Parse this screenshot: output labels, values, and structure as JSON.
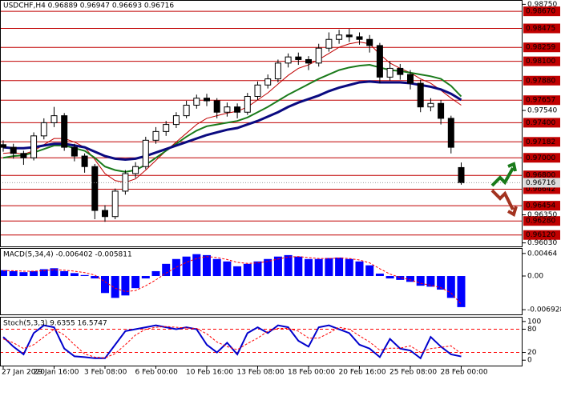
{
  "chart_data": [
    {
      "type": "candlestick",
      "title": "USDCHF,H4 0.96889 0.96947 0.96693 0.96716",
      "open": [
        0.9715,
        0.9712,
        0.9705,
        0.97,
        0.9725,
        0.974,
        0.9748,
        0.9712,
        0.9702,
        0.969,
        0.964,
        0.9633,
        0.9662,
        0.9682,
        0.969,
        0.972,
        0.973,
        0.9738,
        0.9748,
        0.976,
        0.9768,
        0.9765,
        0.9752,
        0.9758,
        0.9752,
        0.977,
        0.9783,
        0.979,
        0.9808,
        0.9815,
        0.9812,
        0.9808,
        0.9825,
        0.9835,
        0.984,
        0.9838,
        0.9835,
        0.9828,
        0.9792,
        0.9802,
        0.9795,
        0.9785,
        0.9758,
        0.9762,
        0.9745,
        0.96889
      ],
      "high": [
        0.972,
        0.9716,
        0.9708,
        0.9729,
        0.9745,
        0.9758,
        0.9751,
        0.9716,
        0.9705,
        0.9693,
        0.9646,
        0.9665,
        0.9686,
        0.9695,
        0.9724,
        0.9735,
        0.9742,
        0.9752,
        0.9765,
        0.9772,
        0.9773,
        0.9768,
        0.9763,
        0.9762,
        0.9774,
        0.9787,
        0.9795,
        0.9812,
        0.9819,
        0.982,
        0.9816,
        0.983,
        0.9843,
        0.9846,
        0.9847,
        0.9843,
        0.984,
        0.9831,
        0.981,
        0.9807,
        0.98,
        0.9789,
        0.9768,
        0.9766,
        0.9748,
        0.96947
      ],
      "low": [
        0.9707,
        0.9699,
        0.9692,
        0.9697,
        0.9721,
        0.9735,
        0.9708,
        0.9696,
        0.9683,
        0.963,
        0.9627,
        0.963,
        0.9658,
        0.9677,
        0.9687,
        0.9716,
        0.9725,
        0.9734,
        0.9745,
        0.9756,
        0.9759,
        0.9745,
        0.9747,
        0.9745,
        0.9749,
        0.9766,
        0.9779,
        0.9786,
        0.9803,
        0.9806,
        0.98,
        0.9804,
        0.9821,
        0.983,
        0.9832,
        0.9829,
        0.982,
        0.9785,
        0.9788,
        0.9789,
        0.9778,
        0.9752,
        0.9753,
        0.9738,
        0.9705,
        0.96693
      ],
      "close": [
        0.9712,
        0.9705,
        0.97,
        0.9725,
        0.974,
        0.9748,
        0.9712,
        0.9702,
        0.969,
        0.964,
        0.9633,
        0.9662,
        0.9682,
        0.969,
        0.972,
        0.973,
        0.9738,
        0.9748,
        0.976,
        0.9768,
        0.9765,
        0.9752,
        0.9758,
        0.9752,
        0.977,
        0.9783,
        0.979,
        0.9808,
        0.9815,
        0.9812,
        0.9808,
        0.9825,
        0.9835,
        0.984,
        0.9838,
        0.9835,
        0.9828,
        0.9792,
        0.9802,
        0.9795,
        0.9785,
        0.9758,
        0.9762,
        0.9745,
        0.9712,
        0.96716
      ],
      "bull_color": "#ffffff",
      "bear_color": "#000000",
      "series": [
        {
          "color": "#c00000",
          "width": 1,
          "values": [
            0.9705,
            0.9706,
            0.9704,
            0.9708,
            0.9715,
            0.9722,
            0.9722,
            0.9718,
            0.9712,
            0.9698,
            0.9682,
            0.9674,
            0.9672,
            0.9676,
            0.9686,
            0.9697,
            0.9708,
            0.9718,
            0.9728,
            0.9738,
            0.9745,
            0.9748,
            0.9751,
            0.9753,
            0.9758,
            0.9766,
            0.9774,
            0.9784,
            0.9794,
            0.9802,
            0.9806,
            0.9812,
            0.9819,
            0.9826,
            0.983,
            0.9832,
            0.983,
            0.9818,
            0.9808,
            0.9802,
            0.9797,
            0.979,
            0.9785,
            0.9777,
            0.9768,
            0.976
          ]
        },
        {
          "color": "#1a7a1a",
          "width": 2,
          "values": [
            0.97,
            0.9702,
            0.9703,
            0.9706,
            0.971,
            0.9714,
            0.9714,
            0.9711,
            0.9708,
            0.97,
            0.969,
            0.9686,
            0.9684,
            0.9686,
            0.9692,
            0.97,
            0.9708,
            0.9716,
            0.9724,
            0.9731,
            0.9736,
            0.9738,
            0.974,
            0.9742,
            0.9746,
            0.9752,
            0.9758,
            0.9765,
            0.9772,
            0.9778,
            0.9784,
            0.979,
            0.9795,
            0.98,
            0.9803,
            0.9805,
            0.9806,
            0.9803,
            0.98,
            0.9799,
            0.9797,
            0.9795,
            0.9793,
            0.979,
            0.9782,
            0.977
          ]
        },
        {
          "color": "#0a0a80",
          "width": 3,
          "values": [
            0.9712,
            0.9711,
            0.9711,
            0.9712,
            0.9714,
            0.9716,
            0.9716,
            0.9714,
            0.9712,
            0.9707,
            0.9702,
            0.9699,
            0.9698,
            0.9699,
            0.9702,
            0.9706,
            0.971,
            0.9714,
            0.9718,
            0.9722,
            0.9726,
            0.9729,
            0.9732,
            0.9734,
            0.9738,
            0.9742,
            0.9747,
            0.9752,
            0.9758,
            0.9763,
            0.9767,
            0.9771,
            0.9776,
            0.978,
            0.9783,
            0.9786,
            0.9787,
            0.9786,
            0.9786,
            0.9786,
            0.9785,
            0.9783,
            0.9781,
            0.9778,
            0.9773,
            0.9766
          ]
        }
      ],
      "ylim": [
        0.9599,
        0.9879
      ],
      "yticks": [
        {
          "value": 0.9875,
          "label": "0.98750"
        },
        {
          "value": 0.9754,
          "label": "0.97540"
        },
        {
          "value": 0.9635,
          "label": "0.96350"
        },
        {
          "value": 0.9603,
          "label": "0.96030"
        }
      ],
      "level_color": "#c00000",
      "levels": [
        {
          "value": 0.9867,
          "label": "0.98670"
        },
        {
          "value": 0.98475,
          "label": "0.98475"
        },
        {
          "value": 0.98259,
          "label": "0.98259"
        },
        {
          "value": 0.981,
          "label": "0.98100"
        },
        {
          "value": 0.9788,
          "label": "0.97880"
        },
        {
          "value": 0.97657,
          "label": "0.97657"
        },
        {
          "value": 0.974,
          "label": "0.97400"
        },
        {
          "value": 0.97182,
          "label": "0.97182"
        },
        {
          "value": 0.97,
          "label": "0.97000"
        },
        {
          "value": 0.968,
          "label": "0.96800"
        },
        {
          "value": 0.96642,
          "label": "0.96642"
        },
        {
          "value": 0.96454,
          "label": "0.96454"
        },
        {
          "value": 0.9628,
          "label": "0.96280"
        },
        {
          "value": 0.9612,
          "label": "0.96120"
        }
      ],
      "current": {
        "value": 0.96716,
        "label": "0.96716"
      }
    },
    {
      "type": "macd",
      "title": "MACD(5,34,4) -0.006402 -0.005811",
      "color": "#0000ff",
      "signal_color": "#ff0000",
      "values": [
        0.0012,
        0.001,
        0.0008,
        0.001,
        0.0014,
        0.0016,
        0.001,
        0.0006,
        0.0002,
        -0.0005,
        -0.0035,
        -0.0045,
        -0.004,
        -0.0025,
        -0.0005,
        0.001,
        0.0025,
        0.0035,
        0.004,
        0.0045,
        0.0043,
        0.0035,
        0.003,
        0.002,
        0.0025,
        0.003,
        0.0035,
        0.004,
        0.0043,
        0.004,
        0.0035,
        0.0035,
        0.0037,
        0.0038,
        0.0035,
        0.003,
        0.0022,
        0.0005,
        -0.0005,
        -0.0008,
        -0.0012,
        -0.002,
        -0.0022,
        -0.0028,
        -0.0045,
        -0.006402
      ],
      "signal": [
        0.0011,
        0.0011,
        0.001,
        0.001,
        0.0011,
        0.0013,
        0.0012,
        0.001,
        0.0007,
        0.0002,
        -0.0012,
        -0.0025,
        -0.0032,
        -0.003,
        -0.002,
        -0.0008,
        0.0006,
        0.0018,
        0.0028,
        0.0036,
        0.004,
        0.0038,
        0.0034,
        0.0028,
        0.0026,
        0.0027,
        0.003,
        0.0035,
        0.0039,
        0.004,
        0.0038,
        0.0036,
        0.0036,
        0.0037,
        0.0036,
        0.0033,
        0.0027,
        0.0015,
        0.0004,
        -0.0003,
        -0.0008,
        -0.0015,
        -0.0019,
        -0.0024,
        -0.0035,
        -0.005811
      ],
      "ylim": [
        -0.0079,
        0.0056
      ],
      "yticks": [
        {
          "value": 0.00464,
          "label": "0.00464"
        },
        {
          "value": 0,
          "label": "0.00"
        },
        {
          "value": -0.006928,
          "label": "-0.006928"
        }
      ]
    },
    {
      "type": "stochastic",
      "title": "Stoch(5,3,3) 9.6355 16.5747",
      "color": "#0000cc",
      "signal_color": "#ff0000",
      "level_color": "#ff0000",
      "values": [
        60,
        35,
        15,
        70,
        90,
        85,
        30,
        10,
        8,
        5,
        5,
        40,
        75,
        80,
        85,
        90,
        85,
        80,
        85,
        80,
        40,
        20,
        45,
        15,
        70,
        85,
        70,
        90,
        85,
        50,
        35,
        85,
        90,
        80,
        70,
        40,
        30,
        8,
        55,
        30,
        25,
        5,
        60,
        35,
        15,
        9.6355
      ],
      "signal": [
        55,
        45,
        30,
        40,
        60,
        80,
        65,
        40,
        16,
        8,
        6,
        17,
        40,
        65,
        80,
        85,
        87,
        85,
        83,
        82,
        68,
        47,
        35,
        27,
        43,
        57,
        75,
        82,
        82,
        75,
        57,
        57,
        70,
        85,
        80,
        63,
        47,
        26,
        31,
        31,
        37,
        20,
        30,
        33,
        37,
        16.5747
      ],
      "ylim": [
        -14,
        110
      ],
      "yticks": [
        100,
        80,
        20,
        0
      ],
      "levels": [
        80,
        20
      ],
      "categories": [
        "27 Jan 2020",
        null,
        null,
        null,
        null,
        "29 Jan 16:00",
        null,
        null,
        null,
        null,
        "3 Feb 08:00",
        null,
        null,
        null,
        null,
        "6 Feb 00:00",
        null,
        null,
        null,
        null,
        "10 Feb 16:00",
        null,
        null,
        null,
        null,
        "13 Feb 08:00",
        null,
        null,
        null,
        null,
        "18 Feb 00:00",
        null,
        null,
        null,
        null,
        "20 Feb 16:00",
        null,
        null,
        null,
        null,
        "25 Feb 08:00",
        null,
        null,
        null,
        null,
        "28 Feb 00:00"
      ]
    }
  ]
}
